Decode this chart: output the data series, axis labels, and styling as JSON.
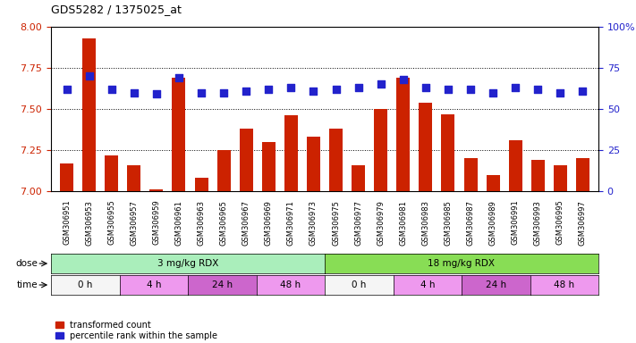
{
  "title": "GDS5282 / 1375025_at",
  "samples": [
    "GSM306951",
    "GSM306953",
    "GSM306955",
    "GSM306957",
    "GSM306959",
    "GSM306961",
    "GSM306963",
    "GSM306965",
    "GSM306967",
    "GSM306969",
    "GSM306971",
    "GSM306973",
    "GSM306975",
    "GSM306977",
    "GSM306979",
    "GSM306981",
    "GSM306983",
    "GSM306985",
    "GSM306987",
    "GSM306989",
    "GSM306991",
    "GSM306993",
    "GSM306995",
    "GSM306997"
  ],
  "bar_values": [
    7.17,
    7.93,
    7.22,
    7.16,
    7.01,
    7.69,
    7.08,
    7.25,
    7.38,
    7.3,
    7.46,
    7.33,
    7.38,
    7.16,
    7.5,
    7.69,
    7.54,
    7.47,
    7.2,
    7.1,
    7.31,
    7.19,
    7.16,
    7.2
  ],
  "dot_values": [
    62,
    70,
    62,
    60,
    59,
    69,
    60,
    60,
    61,
    62,
    63,
    61,
    62,
    63,
    65,
    68,
    63,
    62,
    62,
    60,
    63,
    62,
    60,
    61
  ],
  "ylim_left": [
    7.0,
    8.0
  ],
  "ylim_right": [
    0,
    100
  ],
  "yticks_left": [
    7.0,
    7.25,
    7.5,
    7.75,
    8.0
  ],
  "yticks_right": [
    0,
    25,
    50,
    75,
    100
  ],
  "bar_color": "#cc2200",
  "dot_color": "#2222cc",
  "dot_marker": "s",
  "dot_size": 30,
  "grid_linestyle": "dotted",
  "grid_color": "black",
  "dose_groups": [
    {
      "label": "3 mg/kg RDX",
      "start": 0,
      "end": 12,
      "color": "#aaeebb"
    },
    {
      "label": "18 mg/kg RDX",
      "start": 12,
      "end": 24,
      "color": "#88dd55"
    }
  ],
  "time_groups": [
    {
      "label": "0 h",
      "start": 0,
      "end": 3,
      "color": "#f5f5f5"
    },
    {
      "label": "4 h",
      "start": 3,
      "end": 6,
      "color": "#ee99ee"
    },
    {
      "label": "24 h",
      "start": 6,
      "end": 9,
      "color": "#cc66cc"
    },
    {
      "label": "48 h",
      "start": 9,
      "end": 12,
      "color": "#ee99ee"
    },
    {
      "label": "0 h",
      "start": 12,
      "end": 15,
      "color": "#f5f5f5"
    },
    {
      "label": "4 h",
      "start": 15,
      "end": 18,
      "color": "#ee99ee"
    },
    {
      "label": "24 h",
      "start": 18,
      "end": 21,
      "color": "#cc66cc"
    },
    {
      "label": "48 h",
      "start": 21,
      "end": 24,
      "color": "#ee99ee"
    }
  ],
  "legend_bar_label": "transformed count",
  "legend_dot_label": "percentile rank within the sample",
  "axis_color_left": "#cc2200",
  "axis_color_right": "#2222cc",
  "right_ytick_labels": [
    "0",
    "25",
    "50",
    "75",
    "100%"
  ]
}
